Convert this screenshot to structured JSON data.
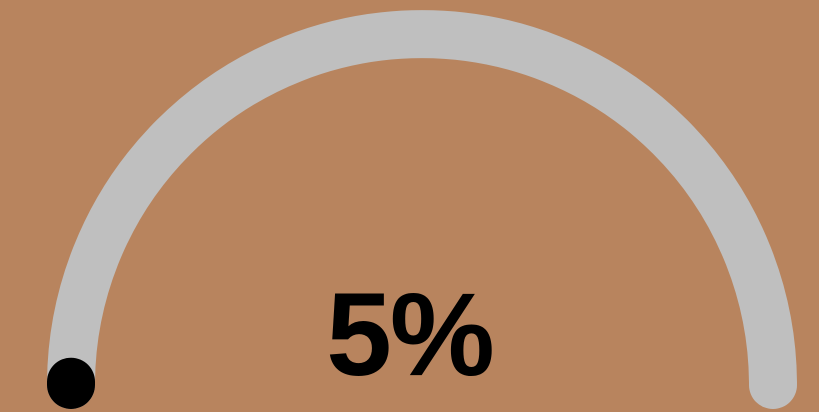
{
  "gauge": {
    "value_label": "5%",
    "value": 0.05
  },
  "colors": {
    "background": "#b8845e",
    "track": "#bfbfbf",
    "fill": "#000000",
    "text": "#000000"
  }
}
